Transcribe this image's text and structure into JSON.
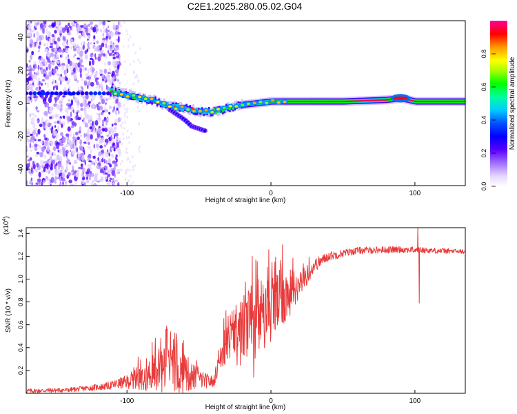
{
  "title": "C2E1.2025.280.05.02.G04",
  "chart_data": [
    {
      "type": "heatmap",
      "name": "spectrogram",
      "xlabel": "Height of straight line (km)",
      "ylabel": "Frequency (Hz)",
      "xlim": [
        -170,
        135
      ],
      "ylim": [
        -50,
        50
      ],
      "xticks": [
        -100,
        0,
        100
      ],
      "xtick_labels": [
        "-100",
        "0",
        "100"
      ],
      "yticks": [
        -40,
        -20,
        0,
        20,
        40
      ],
      "ytick_labels": [
        "-40",
        "-20",
        "0",
        "20",
        "40"
      ],
      "noise_region_x": [
        -170,
        -105
      ],
      "main_tone_track": [
        {
          "x": -110,
          "freq": 7
        },
        {
          "x": -100,
          "freq": 5
        },
        {
          "x": -90,
          "freq": 3
        },
        {
          "x": -80,
          "freq": 1
        },
        {
          "x": -70,
          "freq": -2
        },
        {
          "x": -60,
          "freq": -3
        },
        {
          "x": -50,
          "freq": -5
        },
        {
          "x": -40,
          "freq": -5
        },
        {
          "x": -30,
          "freq": -3
        },
        {
          "x": -20,
          "freq": -1
        },
        {
          "x": -10,
          "freq": 0
        },
        {
          "x": 0,
          "freq": 1
        },
        {
          "x": 20,
          "freq": 1
        },
        {
          "x": 50,
          "freq": 1
        },
        {
          "x": 80,
          "freq": 2
        },
        {
          "x": 90,
          "freq": 3
        },
        {
          "x": 100,
          "freq": 1
        },
        {
          "x": 135,
          "freq": 1
        }
      ],
      "secondary_track": [
        {
          "x": -70,
          "freq": -4
        },
        {
          "x": -60,
          "freq": -10
        },
        {
          "x": -55,
          "freq": -14
        },
        {
          "x": -45,
          "freq": -17
        }
      ],
      "colorbar": {
        "label": "Normalized spectral amplitude",
        "range": [
          0,
          1
        ],
        "ticks": [
          0.0,
          0.2,
          0.4,
          0.6,
          0.8
        ],
        "tick_labels": [
          "0.0",
          "0.2",
          "0.4",
          "0.6",
          "0.8"
        ]
      }
    },
    {
      "type": "line",
      "name": "snr",
      "xlabel": "Height of straight line (km)",
      "ylabel": "SNR (10 * v/v)",
      "scale_label": "(x10",
      "scale_exponent": "4",
      "scale_suffix": ")",
      "xlim": [
        -170,
        135
      ],
      "ylim": [
        0,
        1.45
      ],
      "xticks": [
        -100,
        0,
        100
      ],
      "xtick_labels": [
        "-100",
        "0",
        "100"
      ],
      "yticks": [
        0.2,
        0.4,
        0.6,
        0.8,
        1.0,
        1.2,
        1.4
      ],
      "ytick_labels": [
        "0.2",
        "0.4",
        "0.6",
        "0.8",
        "1.0",
        "1.2",
        "1.4"
      ],
      "color": "#e83a3a",
      "envelope": [
        {
          "x": -170,
          "base": 0.02,
          "amp": 0.02
        },
        {
          "x": -140,
          "base": 0.03,
          "amp": 0.02
        },
        {
          "x": -115,
          "base": 0.06,
          "amp": 0.03
        },
        {
          "x": -100,
          "base": 0.1,
          "amp": 0.06
        },
        {
          "x": -90,
          "base": 0.15,
          "amp": 0.12
        },
        {
          "x": -80,
          "base": 0.18,
          "amp": 0.18
        },
        {
          "x": -72,
          "base": 0.2,
          "amp": 0.22
        },
        {
          "x": -60,
          "base": 0.18,
          "amp": 0.18
        },
        {
          "x": -50,
          "base": 0.12,
          "amp": 0.08
        },
        {
          "x": -40,
          "base": 0.1,
          "amp": 0.05
        },
        {
          "x": -35,
          "base": 0.3,
          "amp": 0.1
        },
        {
          "x": -30,
          "base": 0.45,
          "amp": 0.25
        },
        {
          "x": -20,
          "base": 0.55,
          "amp": 0.3
        },
        {
          "x": -10,
          "base": 0.65,
          "amp": 0.35
        },
        {
          "x": 0,
          "base": 0.75,
          "amp": 0.3
        },
        {
          "x": 10,
          "base": 0.85,
          "amp": 0.25
        },
        {
          "x": 20,
          "base": 0.95,
          "amp": 0.12
        },
        {
          "x": 30,
          "base": 1.12,
          "amp": 0.06
        },
        {
          "x": 40,
          "base": 1.2,
          "amp": 0.04
        },
        {
          "x": 60,
          "base": 1.25,
          "amp": 0.03
        },
        {
          "x": 90,
          "base": 1.26,
          "amp": 0.03
        },
        {
          "x": 135,
          "base": 1.24,
          "amp": 0.02
        }
      ],
      "spikes": [
        {
          "x": -72,
          "value": 0.56
        },
        {
          "x": -12,
          "value": 0.14
        },
        {
          "x": -13,
          "value": 1.2
        },
        {
          "x": 8,
          "value": 1.3
        },
        {
          "x": 102,
          "value": 1.45
        },
        {
          "x": 103,
          "value": 0.79
        }
      ]
    }
  ]
}
